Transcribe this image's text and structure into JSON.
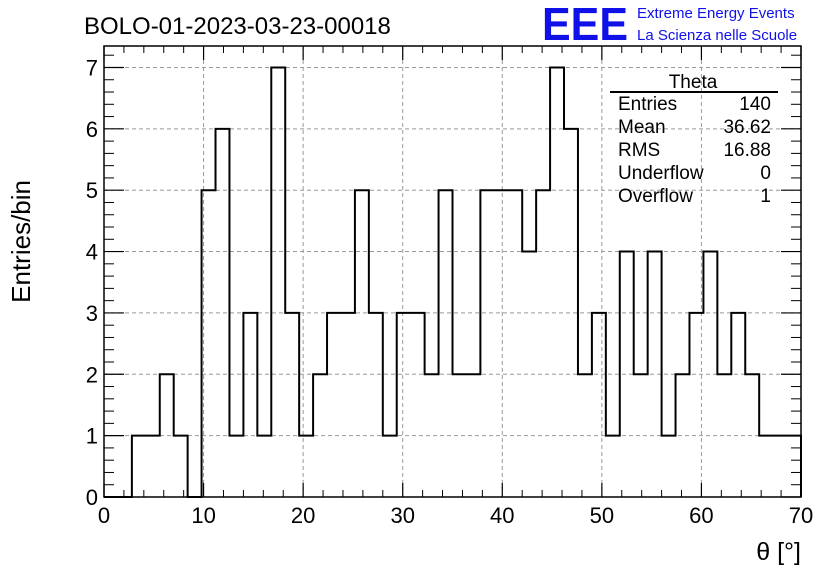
{
  "header": {
    "run_title": "BOLO-01-2023-03-23-00018",
    "logo_text": "EEE",
    "logo_line1": "Extreme Energy Events",
    "logo_line2": "La Scienza nelle Scuole",
    "logo_color": "#1010e8"
  },
  "stats": {
    "title": "Theta",
    "rows": [
      {
        "label": "Entries",
        "value": "140"
      },
      {
        "label": "Mean",
        "value": "36.62"
      },
      {
        "label": "RMS",
        "value": "16.88"
      },
      {
        "label": "Underflow",
        "value": "0"
      },
      {
        "label": "Overflow",
        "value": "1"
      }
    ]
  },
  "chart_data": {
    "type": "histogram",
    "xlabel": "θ [°]",
    "ylabel": "Entries/bin",
    "xlim": [
      0,
      70
    ],
    "ylim": [
      0,
      7.35
    ],
    "x_ticks": [
      0,
      10,
      20,
      30,
      40,
      50,
      60,
      70
    ],
    "y_ticks": [
      0,
      1,
      2,
      3,
      4,
      5,
      6,
      7
    ],
    "grid": true,
    "bin_width": 1.4,
    "bin_start": 0,
    "values": [
      0,
      0,
      1,
      1,
      2,
      1,
      0,
      5,
      6,
      1,
      3,
      1,
      7,
      3,
      1,
      2,
      3,
      3,
      5,
      3,
      1,
      3,
      3,
      2,
      5,
      2,
      2,
      5,
      5,
      5,
      4,
      5,
      7,
      6,
      2,
      3,
      1,
      4,
      2,
      4,
      1,
      2,
      3,
      4,
      2,
      3,
      2,
      1,
      1,
      1
    ]
  }
}
